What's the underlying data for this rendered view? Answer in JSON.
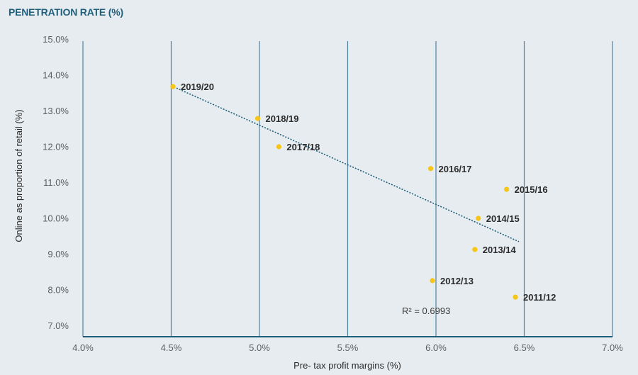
{
  "chart_data": {
    "type": "scatter",
    "title": "PENETRATION RATE (%)",
    "xlabel": "Pre- tax profit margins (%)",
    "ylabel": "Online as proportion of retail (%)",
    "xlim": [
      4.0,
      7.0
    ],
    "ylim": [
      6.7,
      15.0
    ],
    "xticks": [
      {
        "v": 4.0,
        "label": "4.0%"
      },
      {
        "v": 4.5,
        "label": "4.5%"
      },
      {
        "v": 5.0,
        "label": "5.0%"
      },
      {
        "v": 5.5,
        "label": "5.5%"
      },
      {
        "v": 6.0,
        "label": "6.0%"
      },
      {
        "v": 6.5,
        "label": "6.5%"
      },
      {
        "v": 7.0,
        "label": "7.0%"
      }
    ],
    "yticks": [
      {
        "v": 7,
        "label": "7.0%"
      },
      {
        "v": 8,
        "label": "8.0%"
      },
      {
        "v": 9,
        "label": "9.0%"
      },
      {
        "v": 10,
        "label": "10.0%"
      },
      {
        "v": 11,
        "label": "11.0%"
      },
      {
        "v": 12,
        "label": "12.0%"
      },
      {
        "v": 13,
        "label": "13.0%"
      },
      {
        "v": 14,
        "label": "14.0%"
      },
      {
        "v": 15,
        "label": "15.0%"
      }
    ],
    "grid": "vertical",
    "points": [
      {
        "label": "2019/20",
        "x": 4.51,
        "y": 13.67
      },
      {
        "label": "2018/19",
        "x": 4.99,
        "y": 12.78
      },
      {
        "label": "2017/18",
        "x": 5.11,
        "y": 11.99
      },
      {
        "label": "2016/17",
        "x": 5.97,
        "y": 11.38
      },
      {
        "label": "2015/16",
        "x": 6.4,
        "y": 10.8
      },
      {
        "label": "2014/15",
        "x": 6.24,
        "y": 9.99
      },
      {
        "label": "2013/14",
        "x": 6.22,
        "y": 9.12
      },
      {
        "label": "2012/13",
        "x": 5.98,
        "y": 8.25
      },
      {
        "label": "2011/12",
        "x": 6.45,
        "y": 7.79
      }
    ],
    "trendline": {
      "x": [
        4.53,
        6.47
      ],
      "y": [
        13.63,
        9.34
      ],
      "style": "dotted"
    },
    "annotation": "R² = 0.6993",
    "colors": {
      "point": "#f5c518",
      "grid": "#4f819f",
      "axis": "#1f5f7c",
      "trend": "#1f5f7c"
    }
  }
}
